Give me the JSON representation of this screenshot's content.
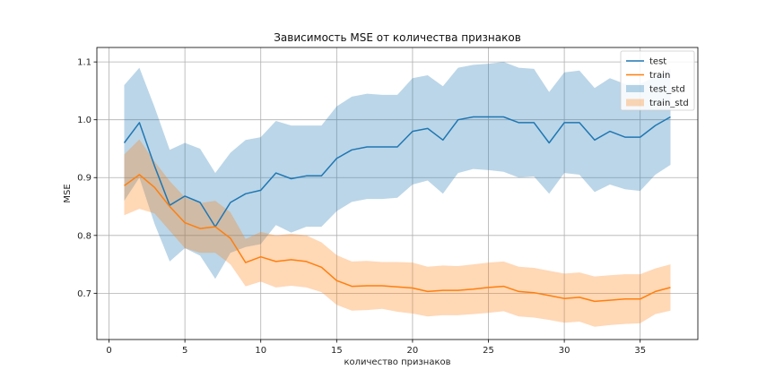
{
  "chart_data": {
    "type": "line",
    "title": "Зависимость MSE от количества признаков",
    "xlabel": "количество признаков",
    "ylabel": "MSE",
    "xlim": [
      -0.8,
      38.8
    ],
    "ylim": [
      0.62,
      1.125
    ],
    "xticks": [
      0,
      5,
      10,
      15,
      20,
      25,
      30,
      35
    ],
    "yticks": [
      0.7,
      0.8,
      0.9,
      1.0,
      1.1
    ],
    "ytick_labels": [
      "0.7",
      "0.8",
      "0.9",
      "1.0",
      "1.1"
    ],
    "grid": true,
    "legend_position": "top-right",
    "x": [
      1,
      2,
      3,
      4,
      5,
      6,
      7,
      8,
      9,
      10,
      11,
      12,
      13,
      14,
      15,
      16,
      17,
      18,
      19,
      20,
      21,
      22,
      23,
      24,
      25,
      26,
      27,
      28,
      29,
      30,
      31,
      32,
      33,
      34,
      35,
      36,
      37
    ],
    "series": [
      {
        "name": "test",
        "color": "#1f77b4",
        "values": [
          0.96,
          0.995,
          0.92,
          0.852,
          0.868,
          0.857,
          0.815,
          0.857,
          0.872,
          0.878,
          0.908,
          0.898,
          0.903,
          0.903,
          0.933,
          0.948,
          0.953,
          0.953,
          0.953,
          0.98,
          0.985,
          0.965,
          1.0,
          1.005,
          1.005,
          1.005,
          0.995,
          0.995,
          0.96,
          0.995,
          0.995,
          0.965,
          0.98,
          0.97,
          0.97,
          0.99,
          1.005
        ]
      },
      {
        "name": "train",
        "color": "#ff7f0e",
        "values": [
          0.886,
          0.905,
          0.883,
          0.85,
          0.822,
          0.812,
          0.815,
          0.795,
          0.753,
          0.763,
          0.755,
          0.758,
          0.755,
          0.745,
          0.722,
          0.712,
          0.713,
          0.713,
          0.711,
          0.709,
          0.703,
          0.705,
          0.705,
          0.707,
          0.71,
          0.712,
          0.703,
          0.701,
          0.696,
          0.691,
          0.693,
          0.686,
          0.688,
          0.69,
          0.69,
          0.703,
          0.71
        ]
      }
    ],
    "bands": [
      {
        "name": "test_std",
        "color": "#1f77b4",
        "opacity": 0.3,
        "lower": [
          0.86,
          0.9,
          0.82,
          0.755,
          0.778,
          0.765,
          0.725,
          0.77,
          0.78,
          0.785,
          0.818,
          0.805,
          0.815,
          0.815,
          0.842,
          0.858,
          0.863,
          0.863,
          0.865,
          0.888,
          0.895,
          0.872,
          0.908,
          0.915,
          0.913,
          0.91,
          0.9,
          0.902,
          0.872,
          0.908,
          0.905,
          0.875,
          0.888,
          0.88,
          0.877,
          0.905,
          0.922
        ],
        "upper": [
          1.06,
          1.09,
          1.022,
          0.948,
          0.96,
          0.95,
          0.908,
          0.943,
          0.965,
          0.97,
          0.998,
          0.99,
          0.99,
          0.99,
          1.023,
          1.04,
          1.045,
          1.043,
          1.043,
          1.072,
          1.077,
          1.058,
          1.09,
          1.095,
          1.097,
          1.1,
          1.09,
          1.088,
          1.048,
          1.082,
          1.085,
          1.055,
          1.072,
          1.062,
          1.062,
          1.075,
          1.088
        ]
      },
      {
        "name": "train_std",
        "color": "#ff7f0e",
        "opacity": 0.3,
        "lower": [
          0.835,
          0.846,
          0.838,
          0.808,
          0.778,
          0.77,
          0.77,
          0.75,
          0.712,
          0.72,
          0.71,
          0.713,
          0.71,
          0.702,
          0.68,
          0.67,
          0.671,
          0.673,
          0.668,
          0.665,
          0.66,
          0.662,
          0.662,
          0.664,
          0.666,
          0.669,
          0.66,
          0.658,
          0.654,
          0.649,
          0.651,
          0.642,
          0.645,
          0.647,
          0.648,
          0.664,
          0.67
        ],
        "upper": [
          0.94,
          0.966,
          0.928,
          0.894,
          0.866,
          0.856,
          0.86,
          0.84,
          0.794,
          0.806,
          0.8,
          0.803,
          0.8,
          0.788,
          0.766,
          0.755,
          0.756,
          0.754,
          0.754,
          0.753,
          0.746,
          0.748,
          0.747,
          0.75,
          0.753,
          0.755,
          0.746,
          0.744,
          0.739,
          0.734,
          0.736,
          0.729,
          0.731,
          0.733,
          0.733,
          0.743,
          0.75
        ]
      }
    ]
  }
}
